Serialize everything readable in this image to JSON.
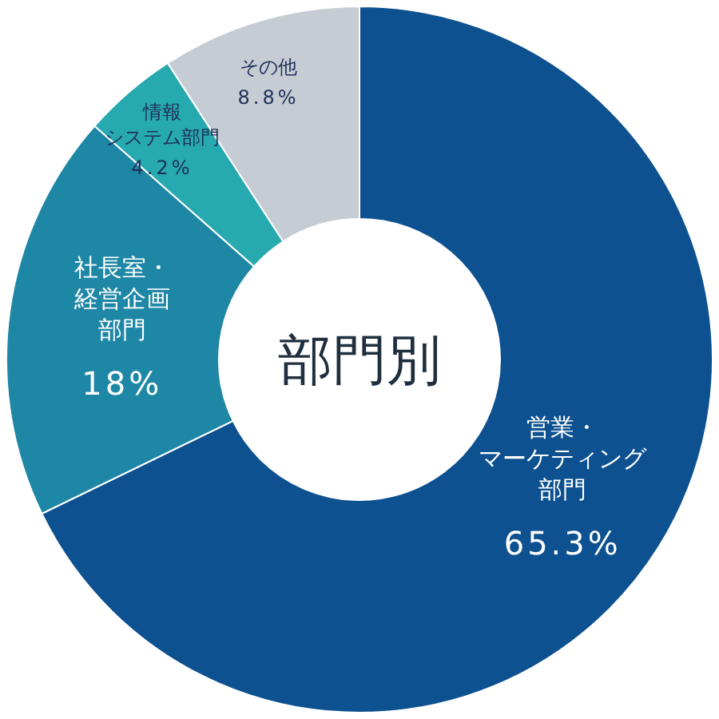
{
  "chart_data": {
    "type": "donut",
    "title": "部門別",
    "categories": [
      "営業・マーケティング部門",
      "社長室・経営企画部門",
      "情報システム部門",
      "その他"
    ],
    "values": [
      65.3,
      18,
      4.2,
      8.8
    ],
    "value_labels": [
      "65.3%",
      "18%",
      "4.2%",
      "8.8%"
    ],
    "colors": [
      "#0d5191",
      "#1f87a6",
      "#27a9b0",
      "#c6ccd3"
    ]
  }
}
